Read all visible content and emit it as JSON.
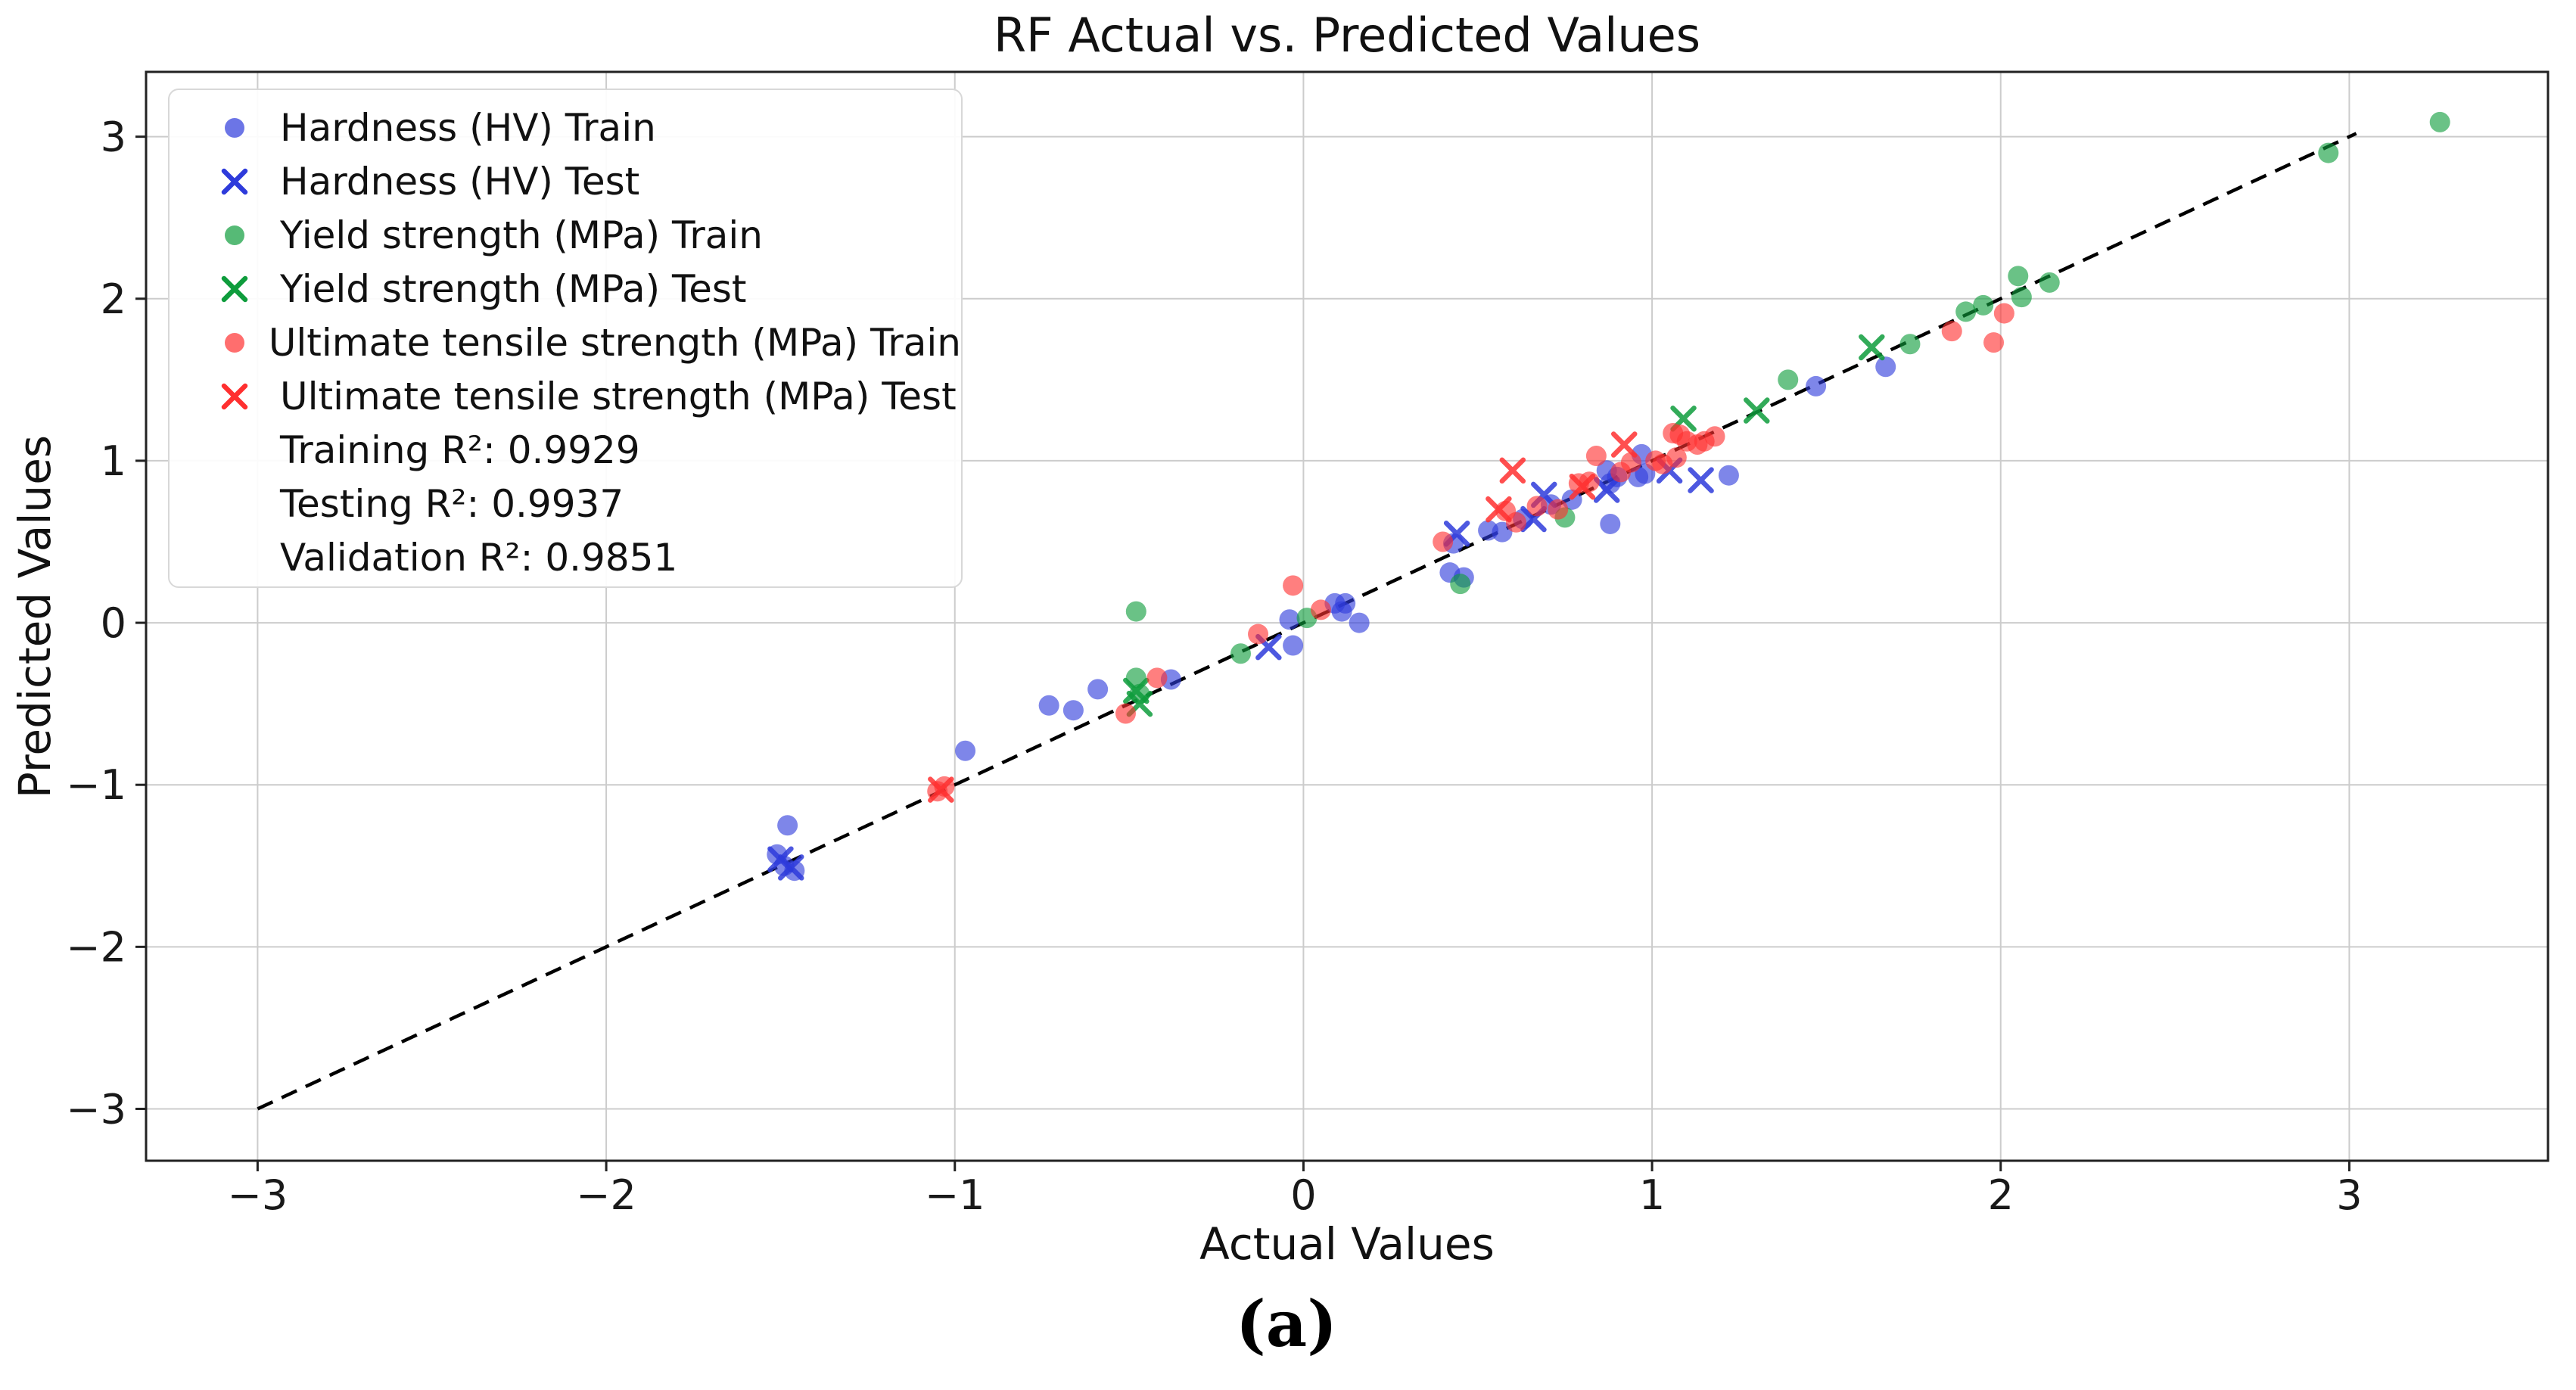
{
  "figure": {
    "caption": "(a)"
  },
  "chart_data": {
    "type": "scatter",
    "title": "RF Actual vs. Predicted Values",
    "xlabel": "Actual Values",
    "ylabel": "Predicted Values",
    "xlim": [
      -3.32,
      3.57
    ],
    "ylim": [
      -3.32,
      3.4
    ],
    "xticks": [
      -3,
      -2,
      -1,
      0,
      1,
      2,
      3
    ],
    "yticks": [
      -3,
      -2,
      -1,
      0,
      1,
      2,
      3
    ],
    "grid": true,
    "grid_color": "#cccccc",
    "spine_color": "#222222",
    "legend_position": "upper left",
    "identity_line": {
      "style": "dashed",
      "color": "#000000",
      "from": [
        -3.0,
        -3.0
      ],
      "to": [
        3.02,
        3.02
      ]
    },
    "series": [
      {
        "name": "Hardness (HV) Train",
        "marker": "circle",
        "color": "#2E3BDB",
        "points": [
          [
            -1.48,
            -1.25
          ],
          [
            -1.51,
            -1.43
          ],
          [
            -1.49,
            -1.5
          ],
          [
            -1.46,
            -1.53
          ],
          [
            -0.97,
            -0.79
          ],
          [
            -0.73,
            -0.51
          ],
          [
            -0.66,
            -0.54
          ],
          [
            -0.59,
            -0.41
          ],
          [
            -0.38,
            -0.35
          ],
          [
            -0.04,
            0.02
          ],
          [
            -0.03,
            -0.14
          ],
          [
            0.16,
            0.0
          ],
          [
            0.09,
            0.12
          ],
          [
            0.12,
            0.12
          ],
          [
            0.11,
            0.07
          ],
          [
            0.42,
            0.31
          ],
          [
            0.46,
            0.28
          ],
          [
            0.43,
            0.49
          ],
          [
            0.53,
            0.57
          ],
          [
            0.57,
            0.56
          ],
          [
            0.63,
            0.64
          ],
          [
            0.71,
            0.73
          ],
          [
            0.77,
            0.76
          ],
          [
            0.88,
            0.61
          ],
          [
            0.87,
            0.94
          ],
          [
            0.88,
            0.86
          ],
          [
            0.9,
            0.9
          ],
          [
            0.96,
            0.9
          ],
          [
            0.98,
            0.92
          ],
          [
            0.97,
            1.04
          ],
          [
            1.22,
            0.91
          ],
          [
            1.47,
            1.46
          ],
          [
            1.67,
            1.58
          ]
        ]
      },
      {
        "name": "Hardness (HV) Test",
        "marker": "x",
        "color": "#2E3BDB",
        "points": [
          [
            -1.5,
            -1.46
          ],
          [
            -1.47,
            -1.51
          ],
          [
            -0.1,
            -0.15
          ],
          [
            0.44,
            0.55
          ],
          [
            0.66,
            0.64
          ],
          [
            0.69,
            0.79
          ],
          [
            0.87,
            0.82
          ],
          [
            1.05,
            0.94
          ],
          [
            1.14,
            0.88
          ]
        ]
      },
      {
        "name": "Yield strength (MPa) Train",
        "marker": "circle",
        "color": "#0E9C3C",
        "points": [
          [
            -0.48,
            0.07
          ],
          [
            -0.48,
            -0.34
          ],
          [
            -0.47,
            -0.44
          ],
          [
            -0.18,
            -0.19
          ],
          [
            0.01,
            0.03
          ],
          [
            0.45,
            0.24
          ],
          [
            0.75,
            0.65
          ],
          [
            1.39,
            1.5
          ],
          [
            1.74,
            1.72
          ],
          [
            1.9,
            1.92
          ],
          [
            1.95,
            1.96
          ],
          [
            2.06,
            2.01
          ],
          [
            2.05,
            2.14
          ],
          [
            2.14,
            2.1
          ],
          [
            2.94,
            2.9
          ],
          [
            3.26,
            3.09
          ]
        ]
      },
      {
        "name": "Yield strength (MPa) Test",
        "marker": "x",
        "color": "#0E9C3C",
        "points": [
          [
            -0.48,
            -0.42
          ],
          [
            -0.47,
            -0.5
          ],
          [
            1.09,
            1.26
          ],
          [
            1.3,
            1.31
          ],
          [
            1.63,
            1.7
          ]
        ]
      },
      {
        "name": "Ultimate tensile strength (MPa) Train",
        "marker": "circle",
        "color": "#FF3030",
        "points": [
          [
            -1.03,
            -1.01
          ],
          [
            -1.05,
            -1.04
          ],
          [
            -0.51,
            -0.56
          ],
          [
            -0.42,
            -0.34
          ],
          [
            -0.13,
            -0.07
          ],
          [
            -0.03,
            0.23
          ],
          [
            0.05,
            0.08
          ],
          [
            0.4,
            0.5
          ],
          [
            0.58,
            0.69
          ],
          [
            0.61,
            0.62
          ],
          [
            0.67,
            0.72
          ],
          [
            0.73,
            0.7
          ],
          [
            0.79,
            0.86
          ],
          [
            0.82,
            0.87
          ],
          [
            0.84,
            1.03
          ],
          [
            0.91,
            0.93
          ],
          [
            0.94,
            0.99
          ],
          [
            1.01,
            1.0
          ],
          [
            1.03,
            0.98
          ],
          [
            1.07,
            1.02
          ],
          [
            1.06,
            1.17
          ],
          [
            1.08,
            1.16
          ],
          [
            1.1,
            1.12
          ],
          [
            1.13,
            1.1
          ],
          [
            1.15,
            1.12
          ],
          [
            1.18,
            1.15
          ],
          [
            1.86,
            1.8
          ],
          [
            1.98,
            1.73
          ],
          [
            2.01,
            1.91
          ]
        ]
      },
      {
        "name": "Ultimate tensile strength (MPa) Test",
        "marker": "x",
        "color": "#FF3030",
        "points": [
          [
            -1.04,
            -1.03
          ],
          [
            0.56,
            0.7
          ],
          [
            0.6,
            0.94
          ],
          [
            0.8,
            0.84
          ],
          [
            0.92,
            1.1
          ]
        ]
      }
    ],
    "annotations": [
      "Training R²: 0.9929",
      "Testing R²: 0.9937",
      "Validation R²: 0.9851"
    ]
  }
}
